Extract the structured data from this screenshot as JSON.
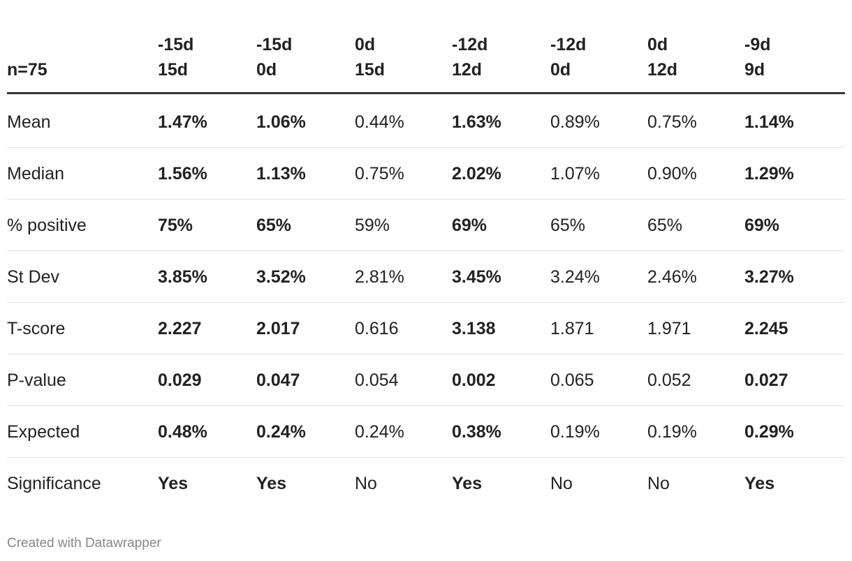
{
  "table": {
    "corner": "n=75",
    "columns": [
      [
        "-15d",
        "15d"
      ],
      [
        "-15d",
        "0d"
      ],
      [
        "0d",
        "15d"
      ],
      [
        "-12d",
        "12d"
      ],
      [
        "-12d",
        "0d"
      ],
      [
        "0d",
        "12d"
      ],
      [
        "-9d",
        "9d"
      ]
    ],
    "rows": [
      {
        "label": "Mean",
        "cells": [
          "1.47%",
          "1.06%",
          "0.44%",
          "1.63%",
          "0.89%",
          "0.75%",
          "1.14%"
        ]
      },
      {
        "label": "Median",
        "cells": [
          "1.56%",
          "1.13%",
          "0.75%",
          "2.02%",
          "1.07%",
          "0.90%",
          "1.29%"
        ]
      },
      {
        "label": "% positive",
        "cells": [
          "75%",
          "65%",
          "59%",
          "69%",
          "65%",
          "65%",
          "69%"
        ]
      },
      {
        "label": "St Dev",
        "cells": [
          "3.85%",
          "3.52%",
          "2.81%",
          "3.45%",
          "3.24%",
          "2.46%",
          "3.27%"
        ]
      },
      {
        "label": "T-score",
        "cells": [
          "2.227",
          "2.017",
          "0.616",
          "3.138",
          "1.871",
          "1.971",
          "2.245"
        ]
      },
      {
        "label": "P-value",
        "cells": [
          "0.029",
          "0.047",
          "0.054",
          "0.002",
          "0.065",
          "0.052",
          "0.027"
        ]
      },
      {
        "label": "Expected",
        "cells": [
          "0.48%",
          "0.24%",
          "0.24%",
          "0.38%",
          "0.19%",
          "0.19%",
          "0.29%"
        ]
      },
      {
        "label": "Significance",
        "cells": [
          "Yes",
          "Yes",
          "No",
          "Yes",
          "No",
          "No",
          "Yes"
        ]
      }
    ]
  },
  "footer": "Created with Datawrapper"
}
